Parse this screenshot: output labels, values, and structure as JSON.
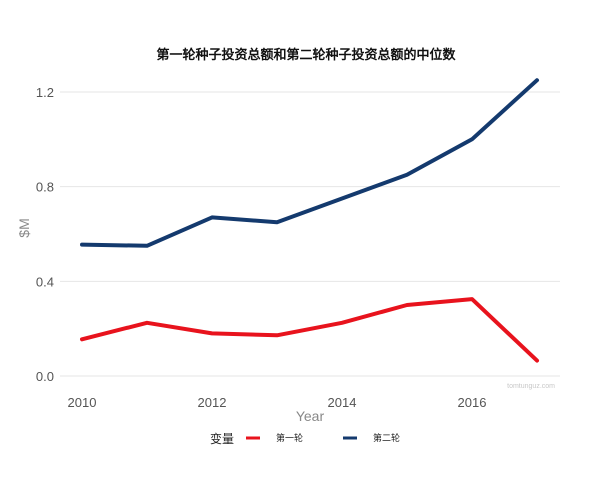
{
  "chart_data": {
    "type": "line",
    "title": "第一轮种子投资总额和第二轮种子投资总额的中位数",
    "xlabel": "Year",
    "ylabel": "$M",
    "x": [
      2010,
      2011,
      2012,
      2013,
      2014,
      2015,
      2016,
      2017
    ],
    "x_ticks": [
      2010,
      2012,
      2014,
      2016
    ],
    "y_ticks": [
      0.0,
      0.4,
      0.8,
      1.2
    ],
    "y_tick_labels": [
      "0.0",
      "0.4",
      "0.8",
      "1.2"
    ],
    "xlim": [
      2010,
      2017
    ],
    "ylim": [
      0,
      1.2
    ],
    "grid": true,
    "legend": {
      "title": "变量",
      "placement": "bottom"
    },
    "series": [
      {
        "name": "第一轮",
        "color": "#e8131d",
        "values": [
          0.155,
          0.225,
          0.18,
          0.172,
          0.225,
          0.3,
          0.325,
          0.065
        ]
      },
      {
        "name": "第二轮",
        "color": "#143a6e",
        "values": [
          0.555,
          0.55,
          0.67,
          0.65,
          0.75,
          0.85,
          1.0,
          1.25
        ]
      }
    ],
    "watermark": "tomtunguz.com"
  }
}
